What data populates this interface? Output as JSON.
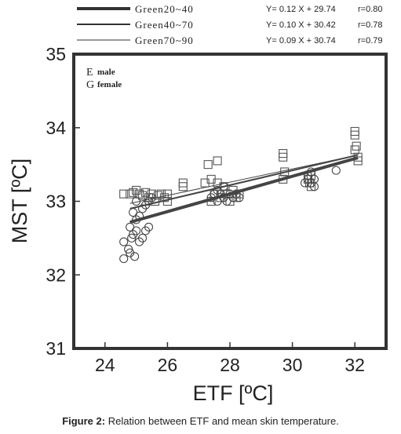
{
  "caption": {
    "label": "Figure 2:",
    "text": " Relation between ETF and mean skin temperature."
  },
  "chart_data": {
    "type": "scatter",
    "xlabel": "ETF [ºC]",
    "ylabel": "MST [ºC]",
    "xlim": [
      23,
      33
    ],
    "ylim": [
      31,
      35
    ],
    "xticks": [
      24,
      26,
      28,
      30,
      32
    ],
    "yticks": [
      31,
      32,
      33,
      34,
      35
    ],
    "marker_legend": [
      {
        "glyph": "E",
        "label": "male",
        "marker": "square"
      },
      {
        "glyph": "G",
        "label": "female",
        "marker": "circle"
      }
    ],
    "regressions": [
      {
        "name": "Green20~40",
        "equation": "Y= 0.12 X + 29.74",
        "r": "r=0.80",
        "slope": 0.12,
        "intercept": 29.74,
        "x_range": [
          24.8,
          32.1
        ],
        "stroke_px": 4
      },
      {
        "name": "Green40~70",
        "equation": "Y= 0.10 X + 30.42",
        "r": "r=0.78",
        "slope": 0.1,
        "intercept": 30.42,
        "x_range": [
          24.8,
          32.1
        ],
        "stroke_px": 2
      },
      {
        "name": "Green70~90",
        "equation": "Y= 0.09 X + 30.74",
        "r": "r=0.79",
        "slope": 0.09,
        "intercept": 30.74,
        "x_range": [
          24.8,
          32.1
        ],
        "stroke_px": 1
      }
    ],
    "series": [
      {
        "name": "male",
        "marker": "square",
        "points": [
          [
            24.6,
            33.1
          ],
          [
            24.8,
            33.1
          ],
          [
            24.9,
            33.12
          ],
          [
            25.0,
            33.15
          ],
          [
            25.1,
            33.1
          ],
          [
            25.2,
            33.08
          ],
          [
            25.3,
            33.12
          ],
          [
            25.4,
            33.05
          ],
          [
            25.5,
            33.1
          ],
          [
            25.6,
            33.0
          ],
          [
            25.7,
            33.08
          ],
          [
            25.8,
            33.1
          ],
          [
            25.9,
            33.05
          ],
          [
            26.0,
            33.1
          ],
          [
            26.0,
            33.0
          ],
          [
            26.5,
            33.25
          ],
          [
            26.5,
            33.2
          ],
          [
            27.3,
            33.5
          ],
          [
            27.6,
            33.55
          ],
          [
            27.2,
            33.25
          ],
          [
            27.4,
            33.3
          ],
          [
            27.6,
            33.25
          ],
          [
            27.8,
            33.2
          ],
          [
            27.5,
            33.1
          ],
          [
            27.7,
            33.05
          ],
          [
            27.9,
            33.1
          ],
          [
            28.1,
            33.15
          ],
          [
            28.2,
            33.05
          ],
          [
            28.3,
            33.1
          ],
          [
            27.4,
            33.0
          ],
          [
            28.0,
            33.0
          ],
          [
            29.7,
            33.65
          ],
          [
            29.7,
            33.6
          ],
          [
            29.75,
            33.4
          ],
          [
            29.7,
            33.3
          ],
          [
            30.5,
            33.3
          ],
          [
            30.6,
            33.35
          ],
          [
            30.55,
            33.25
          ],
          [
            30.6,
            33.2
          ],
          [
            32.0,
            33.95
          ],
          [
            32.0,
            33.9
          ],
          [
            32.0,
            33.7
          ],
          [
            32.05,
            33.75
          ],
          [
            32.1,
            33.6
          ],
          [
            32.1,
            33.55
          ]
        ]
      },
      {
        "name": "female",
        "marker": "circle",
        "points": [
          [
            24.6,
            32.22
          ],
          [
            24.6,
            32.45
          ],
          [
            24.75,
            32.35
          ],
          [
            24.8,
            32.3
          ],
          [
            24.85,
            32.5
          ],
          [
            24.9,
            32.55
          ],
          [
            25.0,
            32.6
          ],
          [
            25.1,
            32.45
          ],
          [
            25.2,
            32.5
          ],
          [
            25.3,
            32.6
          ],
          [
            25.4,
            32.65
          ],
          [
            25.0,
            32.75
          ],
          [
            25.1,
            32.8
          ],
          [
            25.2,
            32.9
          ],
          [
            24.9,
            32.85
          ],
          [
            25.3,
            32.95
          ],
          [
            25.4,
            33.0
          ],
          [
            25.5,
            33.05
          ],
          [
            25.0,
            33.0
          ],
          [
            24.8,
            32.65
          ],
          [
            24.95,
            32.25
          ],
          [
            27.4,
            33.05
          ],
          [
            27.5,
            33.1
          ],
          [
            27.6,
            33.0
          ],
          [
            27.7,
            33.1
          ],
          [
            27.8,
            33.05
          ],
          [
            27.9,
            33.0
          ],
          [
            28.0,
            33.1
          ],
          [
            28.1,
            33.05
          ],
          [
            28.2,
            33.1
          ],
          [
            28.3,
            33.05
          ],
          [
            27.6,
            33.15
          ],
          [
            27.8,
            33.2
          ],
          [
            30.4,
            33.25
          ],
          [
            30.5,
            33.3
          ],
          [
            30.6,
            33.25
          ],
          [
            30.7,
            33.3
          ],
          [
            30.5,
            33.35
          ],
          [
            30.6,
            33.4
          ],
          [
            30.7,
            33.2
          ],
          [
            31.4,
            33.42
          ]
        ]
      }
    ]
  }
}
